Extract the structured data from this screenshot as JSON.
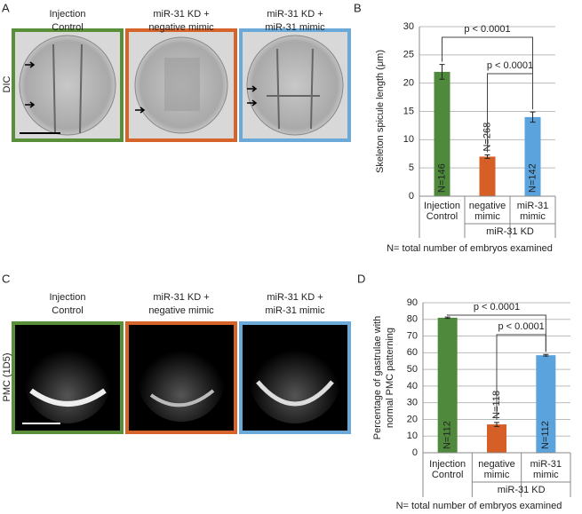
{
  "panels": {
    "A": {
      "label": "A",
      "row_label": "DIC",
      "columns": [
        [
          "Injection",
          "Control"
        ],
        [
          "miR-31 KD +",
          "negative mimic"
        ],
        [
          "miR-31 KD +",
          "miR-31 mimic"
        ]
      ]
    },
    "C": {
      "label": "C",
      "row_label": "PMC (1D5)",
      "columns": [
        [
          "Injection",
          "Control"
        ],
        [
          "miR-31 KD +",
          "negative mimic"
        ],
        [
          "miR-31 KD +",
          "miR-31 mimic"
        ]
      ]
    }
  },
  "chart_data": [
    {
      "type": "bar",
      "panel_label": "B",
      "ylabel": [
        "Skeleton spicule length (μm)"
      ],
      "categories": [
        [
          "Injection",
          "Control"
        ],
        [
          "negative",
          "mimic"
        ],
        [
          "miR-31",
          "mimic"
        ]
      ],
      "values": [
        22,
        7,
        14
      ],
      "errors": [
        1.3,
        0.3,
        0.9
      ],
      "colors": [
        "#4f8a3c",
        "#d65f27",
        "#5aa3dc"
      ],
      "bar_labels": [
        "N=146",
        "N=268",
        "N=142"
      ],
      "ylim": [
        0,
        30
      ],
      "yticks": [
        0,
        5,
        10,
        15,
        20,
        25,
        30
      ],
      "grid": true,
      "annotations": [
        {
          "label": "p < 0.0001",
          "from": 0,
          "to": 2
        },
        {
          "label": "p < 0.0001",
          "from": 1,
          "to": 2
        }
      ],
      "group": {
        "label": "miR-31 KD",
        "from": 1,
        "to": 2
      },
      "note": "N= total number of embryos examined"
    },
    {
      "type": "bar",
      "panel_label": "D",
      "ylabel": [
        "Percentage of gastrulae with",
        "normal PMC patterning"
      ],
      "categories": [
        [
          "Injection",
          "Control"
        ],
        [
          "negative",
          "mimic"
        ],
        [
          "miR-31",
          "mimic"
        ]
      ],
      "values": [
        81,
        17,
        58.5
      ],
      "errors": [
        0.4,
        1.2,
        0.5
      ],
      "colors": [
        "#4f8a3c",
        "#d65f27",
        "#5aa3dc"
      ],
      "bar_labels": [
        "N=112",
        "N=118",
        "N=112"
      ],
      "ylim": [
        0,
        90
      ],
      "yticks": [
        0,
        10,
        20,
        30,
        40,
        50,
        60,
        70,
        80,
        90
      ],
      "grid": true,
      "annotations": [
        {
          "label": "p < 0.0001",
          "from": 0,
          "to": 2
        },
        {
          "label": "p < 0.0001",
          "from": 1,
          "to": 2
        }
      ],
      "group": {
        "label": "miR-31 KD",
        "from": 1,
        "to": 2
      },
      "note": "N= total number of embryos examined"
    }
  ]
}
